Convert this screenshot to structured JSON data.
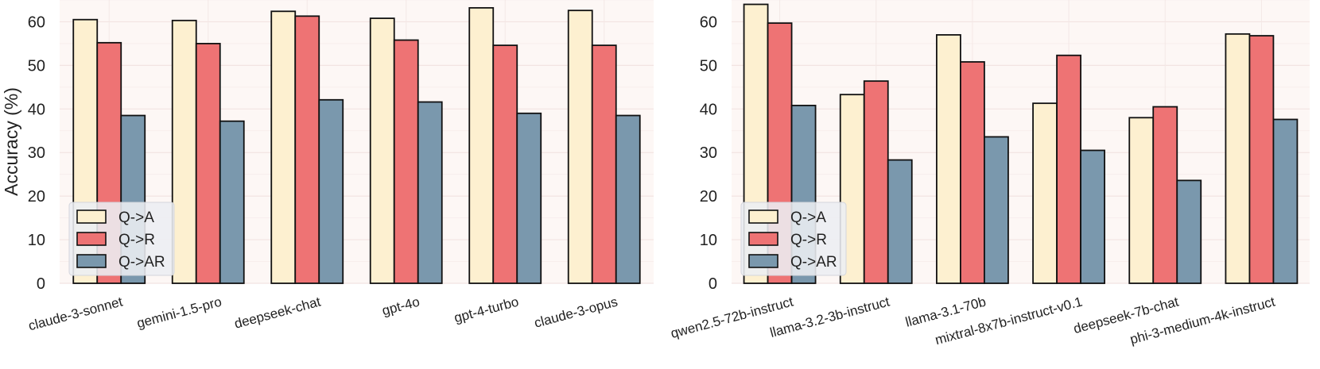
{
  "chart_data": [
    {
      "type": "bar",
      "title": "",
      "xlabel": "",
      "ylabel": "Accuracy (%)",
      "ylim": [
        0,
        65
      ],
      "yticks": [
        "0",
        "10",
        "20",
        "30",
        "40",
        "50",
        "60"
      ],
      "legend_position": "lower-left",
      "categories": [
        "claude-3-sonnet",
        "gemini-1.5-pro",
        "deepseek-chat",
        "gpt-4o",
        "gpt-4-turbo",
        "claude-3-opus"
      ],
      "series": [
        {
          "name": "Q->A",
          "color": "#fdf0d0",
          "values": [
            60.5,
            60.3,
            62.4,
            60.8,
            63.2,
            62.6
          ]
        },
        {
          "name": "Q->R",
          "color": "#ee7374",
          "values": [
            55.2,
            55.0,
            61.3,
            55.8,
            54.6,
            54.6
          ]
        },
        {
          "name": "Q->AR",
          "color": "#7a98ad",
          "values": [
            38.5,
            37.2,
            42.1,
            41.6,
            39.0,
            38.5
          ]
        }
      ]
    },
    {
      "type": "bar",
      "title": "",
      "xlabel": "",
      "ylabel": "",
      "ylim": [
        0,
        65
      ],
      "yticks": [
        "0",
        "10",
        "20",
        "30",
        "40",
        "50",
        "60"
      ],
      "legend_position": "lower-left",
      "categories": [
        "qwen2.5-72b-instruct",
        "llama-3.2-3b-instruct",
        "llama-3.1-70b",
        "mixtral-8x7b-instruct-v0.1",
        "deepseek-7b-chat",
        "phi-3-medium-4k-instruct"
      ],
      "series": [
        {
          "name": "Q->A",
          "color": "#fdf0d0",
          "values": [
            64.0,
            43.3,
            57.0,
            41.3,
            38.0,
            57.2
          ]
        },
        {
          "name": "Q->R",
          "color": "#ee7374",
          "values": [
            59.7,
            46.4,
            50.8,
            52.3,
            40.5,
            56.8
          ]
        },
        {
          "name": "Q->AR",
          "color": "#7a98ad",
          "values": [
            40.8,
            28.3,
            33.6,
            30.5,
            23.6,
            37.6
          ]
        }
      ]
    }
  ]
}
